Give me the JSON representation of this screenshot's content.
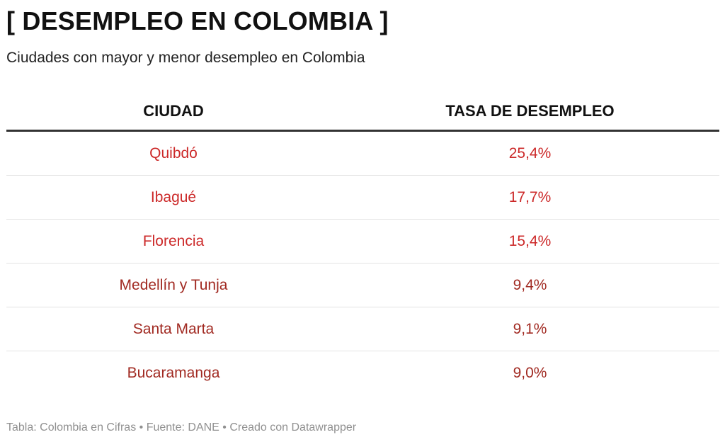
{
  "title": "[ DESEMPLEO EN COLOMBIA ]",
  "subtitle": "Ciudades con mayor y menor desempleo en Colombia",
  "footer": "Tabla: Colombia en Cifras • Fuente: DANE • Creado con Datawrapper",
  "chart_data": {
    "type": "table",
    "title": "[ DESEMPLEO EN COLOMBIA ]",
    "subtitle": "Ciudades con mayor y menor desempleo en Colombia",
    "columns": [
      "CIUDAD",
      "TASA DE DESEMPLEO"
    ],
    "rows": [
      {
        "city": "Quibdó",
        "rate": "25,4%",
        "value": 25.4,
        "color": "#cc2929"
      },
      {
        "city": "Ibagué",
        "rate": "17,7%",
        "value": 17.7,
        "color": "#cc2929"
      },
      {
        "city": "Florencia",
        "rate": "15,4%",
        "value": 15.4,
        "color": "#cc2929"
      },
      {
        "city": "Medellín y Tunja",
        "rate": "9,4%",
        "value": 9.4,
        "color": "#a12a22"
      },
      {
        "city": "Santa Marta",
        "rate": "9,1%",
        "value": 9.1,
        "color": "#a12a22"
      },
      {
        "city": "Bucaramanga",
        "rate": "9,0%",
        "value": 9.0,
        "color": "#a12a22"
      }
    ]
  }
}
